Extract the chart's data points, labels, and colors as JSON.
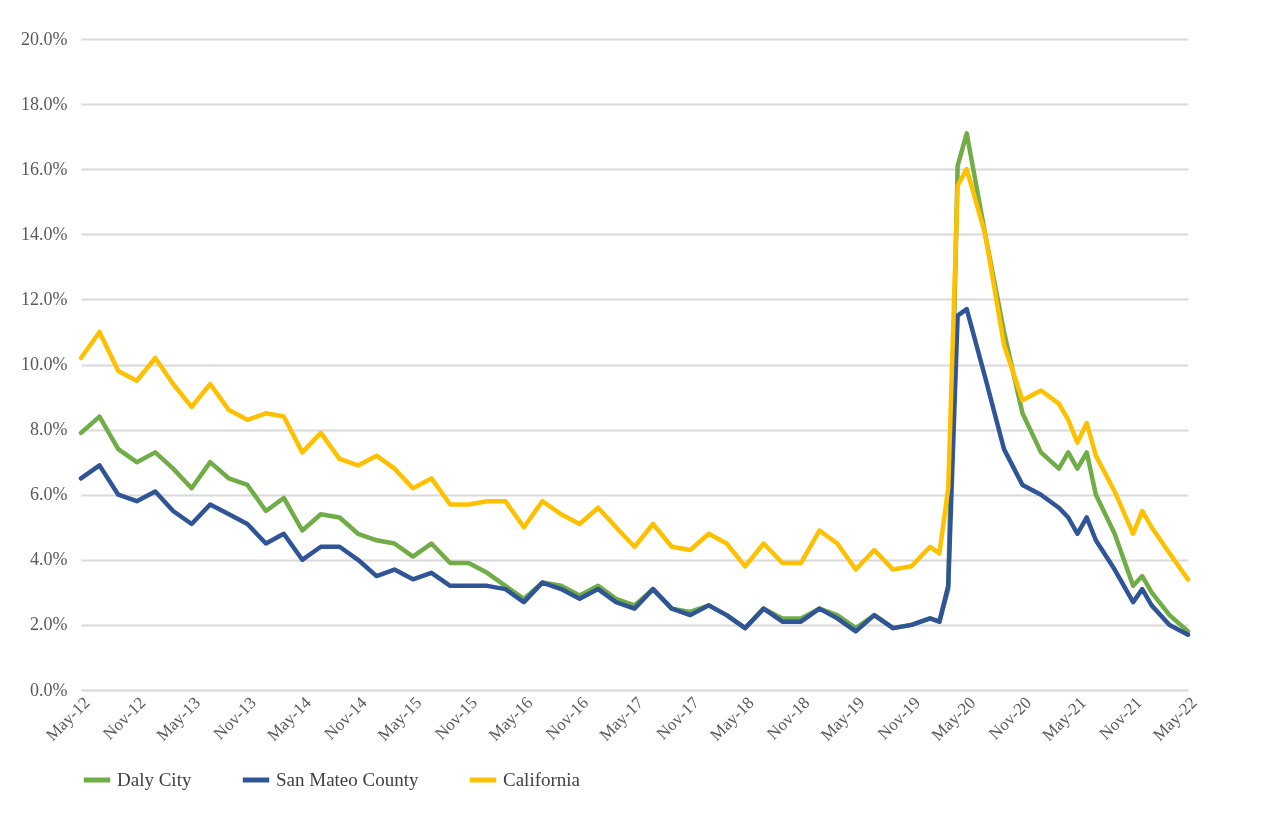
{
  "chart_data": {
    "type": "line",
    "x": [
      "2012-05",
      "2012-07",
      "2012-09",
      "2012-11",
      "2013-01",
      "2013-03",
      "2013-05",
      "2013-07",
      "2013-09",
      "2013-11",
      "2014-01",
      "2014-03",
      "2014-05",
      "2014-07",
      "2014-09",
      "2014-11",
      "2015-01",
      "2015-03",
      "2015-05",
      "2015-07",
      "2015-09",
      "2015-11",
      "2016-01",
      "2016-03",
      "2016-05",
      "2016-07",
      "2016-09",
      "2016-11",
      "2017-01",
      "2017-03",
      "2017-05",
      "2017-07",
      "2017-09",
      "2017-11",
      "2018-01",
      "2018-03",
      "2018-05",
      "2018-07",
      "2018-09",
      "2018-11",
      "2019-01",
      "2019-03",
      "2019-05",
      "2019-07",
      "2019-09",
      "2019-11",
      "2020-01",
      "2020-02",
      "2020-03",
      "2020-04",
      "2020-05",
      "2020-07",
      "2020-09",
      "2020-11",
      "2021-01",
      "2021-03",
      "2021-04",
      "2021-05",
      "2021-06",
      "2021-07",
      "2021-09",
      "2021-11",
      "2021-12",
      "2022-01",
      "2022-03",
      "2022-05"
    ],
    "series": [
      {
        "name": "Daly City",
        "color": "#70ad47",
        "values": [
          7.9,
          8.4,
          7.4,
          7.0,
          7.3,
          6.8,
          6.2,
          7.0,
          6.5,
          6.3,
          5.5,
          5.9,
          4.9,
          5.4,
          5.3,
          4.8,
          4.6,
          4.5,
          4.1,
          4.5,
          3.9,
          3.9,
          3.6,
          3.2,
          2.8,
          3.3,
          3.2,
          2.9,
          3.2,
          2.8,
          2.6,
          3.1,
          2.5,
          2.4,
          2.6,
          2.3,
          1.9,
          2.5,
          2.2,
          2.2,
          2.5,
          2.3,
          1.9,
          2.3,
          1.9,
          2.0,
          2.2,
          2.1,
          3.1,
          16.1,
          17.1,
          14.0,
          11.0,
          8.5,
          7.3,
          6.8,
          7.3,
          6.8,
          7.3,
          6.0,
          4.8,
          3.2,
          3.5,
          3.0,
          2.3,
          1.8
        ]
      },
      {
        "name": "San Mateo County",
        "color": "#2f5597",
        "values": [
          6.5,
          6.9,
          6.0,
          5.8,
          6.1,
          5.5,
          5.1,
          5.7,
          5.4,
          5.1,
          4.5,
          4.8,
          4.0,
          4.4,
          4.4,
          4.0,
          3.5,
          3.7,
          3.4,
          3.6,
          3.2,
          3.2,
          3.2,
          3.1,
          2.7,
          3.3,
          3.1,
          2.8,
          3.1,
          2.7,
          2.5,
          3.1,
          2.5,
          2.3,
          2.6,
          2.3,
          1.9,
          2.5,
          2.1,
          2.1,
          2.5,
          2.2,
          1.8,
          2.3,
          1.9,
          2.0,
          2.2,
          2.1,
          3.2,
          11.5,
          11.7,
          9.6,
          7.4,
          6.3,
          6.0,
          5.6,
          5.3,
          4.8,
          5.3,
          4.6,
          3.7,
          2.7,
          3.1,
          2.6,
          2.0,
          1.7
        ]
      },
      {
        "name": "California",
        "color": "#ffc000",
        "values": [
          10.2,
          11.0,
          9.8,
          9.5,
          10.2,
          9.4,
          8.7,
          9.4,
          8.6,
          8.3,
          8.5,
          8.4,
          7.3,
          7.9,
          7.1,
          6.9,
          7.2,
          6.8,
          6.2,
          6.5,
          5.7,
          5.7,
          5.8,
          5.8,
          5.0,
          5.8,
          5.4,
          5.1,
          5.6,
          5.0,
          4.4,
          5.1,
          4.4,
          4.3,
          4.8,
          4.5,
          3.8,
          4.5,
          3.9,
          3.9,
          4.9,
          4.5,
          3.7,
          4.3,
          3.7,
          3.8,
          4.4,
          4.2,
          6.2,
          15.5,
          16.0,
          14.0,
          10.6,
          8.9,
          9.2,
          8.8,
          8.3,
          7.6,
          8.2,
          7.2,
          6.1,
          4.8,
          5.5,
          5.0,
          4.2,
          3.4
        ]
      }
    ],
    "xlim": [
      "2012-05",
      "2022-05"
    ],
    "xticks": [
      {
        "value": "2012-05",
        "label": "May-12"
      },
      {
        "value": "2012-11",
        "label": "Nov-12"
      },
      {
        "value": "2013-05",
        "label": "May-13"
      },
      {
        "value": "2013-11",
        "label": "Nov-13"
      },
      {
        "value": "2014-05",
        "label": "May-14"
      },
      {
        "value": "2014-11",
        "label": "Nov-14"
      },
      {
        "value": "2015-05",
        "label": "May-15"
      },
      {
        "value": "2015-11",
        "label": "Nov-15"
      },
      {
        "value": "2016-05",
        "label": "May-16"
      },
      {
        "value": "2016-11",
        "label": "Nov-16"
      },
      {
        "value": "2017-05",
        "label": "May-17"
      },
      {
        "value": "2017-11",
        "label": "Nov-17"
      },
      {
        "value": "2018-05",
        "label": "May-18"
      },
      {
        "value": "2018-11",
        "label": "Nov-18"
      },
      {
        "value": "2019-05",
        "label": "May-19"
      },
      {
        "value": "2019-11",
        "label": "Nov-19"
      },
      {
        "value": "2020-05",
        "label": "May-20"
      },
      {
        "value": "2020-11",
        "label": "Nov-20"
      },
      {
        "value": "2021-05",
        "label": "May-21"
      },
      {
        "value": "2021-11",
        "label": "Nov-21"
      },
      {
        "value": "2022-05",
        "label": "May-22"
      }
    ],
    "ylim": [
      0,
      20
    ],
    "yticks": [
      {
        "value": 0,
        "label": "0.0%"
      },
      {
        "value": 2,
        "label": "2.0%"
      },
      {
        "value": 4,
        "label": "4.0%"
      },
      {
        "value": 6,
        "label": "6.0%"
      },
      {
        "value": 8,
        "label": "8.0%"
      },
      {
        "value": 10,
        "label": "10.0%"
      },
      {
        "value": 12,
        "label": "12.0%"
      },
      {
        "value": 14,
        "label": "14.0%"
      },
      {
        "value": 16,
        "label": "16.0%"
      },
      {
        "value": 18,
        "label": "18.0%"
      },
      {
        "value": 20,
        "label": "20.0%"
      }
    ],
    "grid": "y",
    "legend": "bottom",
    "marker": "none",
    "line_style": "solid"
  }
}
